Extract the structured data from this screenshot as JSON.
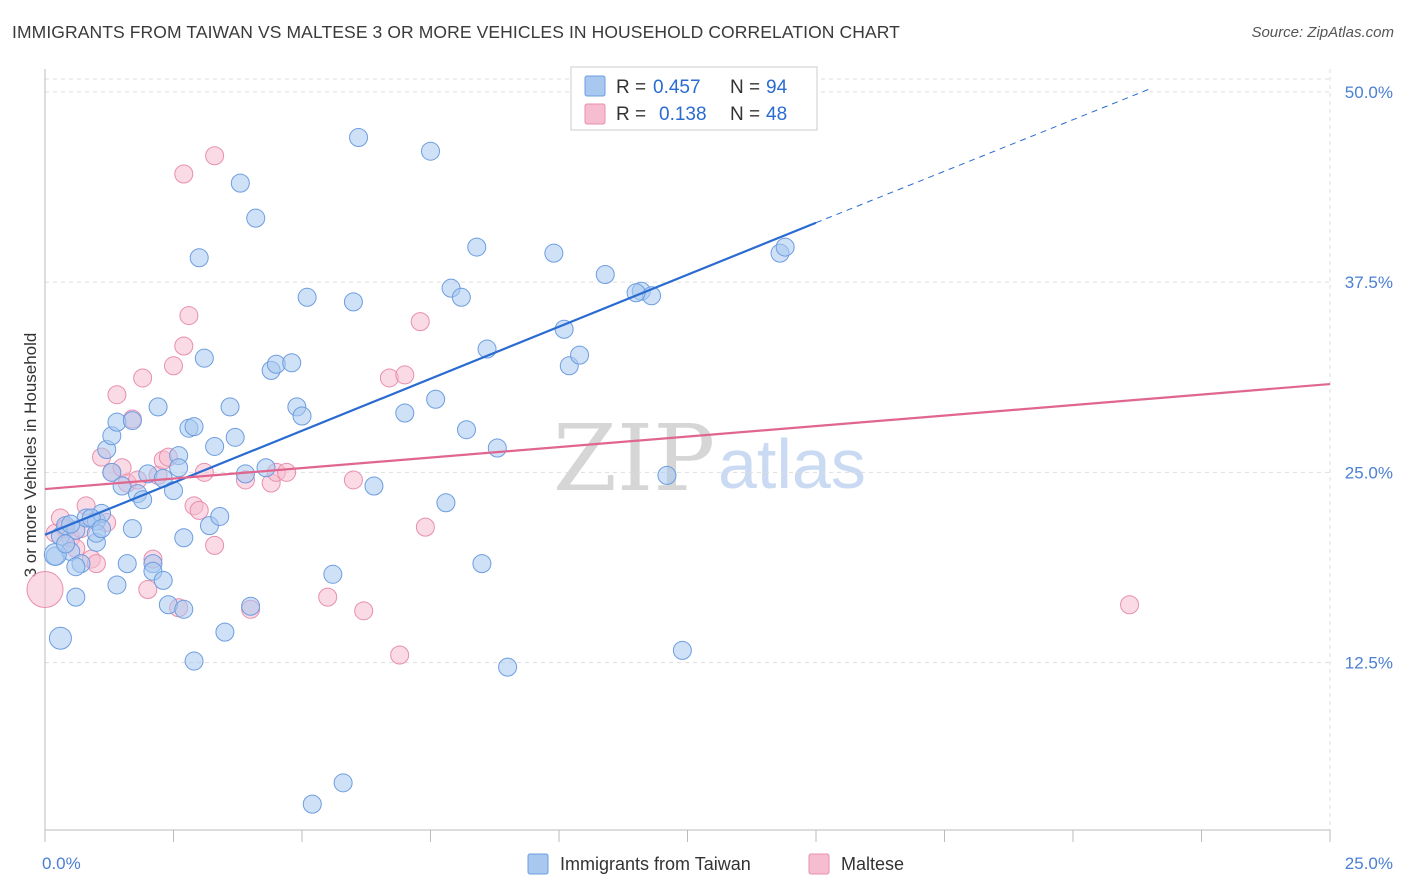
{
  "title": "IMMIGRANTS FROM TAIWAN VS MALTESE 3 OR MORE VEHICLES IN HOUSEHOLD CORRELATION CHART",
  "source": "Source: ZipAtlas.com",
  "watermark": {
    "zip": "ZIP",
    "atlas": "atlas"
  },
  "colors": {
    "taiwan_fill": "#a8c8f0",
    "taiwan_stroke": "#6d9de0",
    "taiwan_line": "#2a6bd1",
    "maltese_fill": "#f6bcd0",
    "maltese_stroke": "#e88fae",
    "maltese_line": "#e06690",
    "tick_text": "#4a7fd4",
    "grid": "#dddddd"
  },
  "legend_top": {
    "rows": [
      {
        "r_label": "R =",
        "r_value": "0.457",
        "n_label": "N =",
        "n_value": "94"
      },
      {
        "r_label": "R =",
        "r_value": "0.138",
        "n_label": "N =",
        "n_value": "48"
      }
    ]
  },
  "legend_bottom": [
    "Immigrants from Taiwan",
    "Maltese"
  ],
  "chart_data": {
    "type": "scatter",
    "title": "IMMIGRANTS FROM TAIWAN VS MALTESE 3 OR MORE VEHICLES IN HOUSEHOLD CORRELATION CHART",
    "xlabel": "",
    "ylabel": "3 or more Vehicles in Household",
    "xlim": [
      0,
      25
    ],
    "ylim": [
      1.5,
      51.5
    ],
    "x_tick_labels": [
      "0.0%",
      "25.0%"
    ],
    "y_ticks": [
      12.5,
      25.0,
      37.5,
      50.0
    ],
    "y_tick_labels": [
      "12.5%",
      "25.0%",
      "37.5%",
      "50.0%"
    ],
    "grid": true,
    "legend_position": "top-center",
    "series": [
      {
        "name": "Immigrants from Taiwan",
        "R": 0.457,
        "N": 94,
        "trend": {
          "x0": 0.0,
          "y0": 20.9,
          "x1": 15.0,
          "y1": 41.4,
          "dash_to_x": 21.5,
          "dash_to_y": 50.2
        },
        "points": [
          [
            0.2,
            19.5
          ],
          [
            0.3,
            20.8
          ],
          [
            0.4,
            21.5
          ],
          [
            0.5,
            19.8
          ],
          [
            0.6,
            21.2
          ],
          [
            0.7,
            19.0
          ],
          [
            0.8,
            22.0
          ],
          [
            0.3,
            14.1
          ],
          [
            0.6,
            16.8
          ],
          [
            1.0,
            21.8
          ],
          [
            1.1,
            22.3
          ],
          [
            1.0,
            20.4
          ],
          [
            1.0,
            21.0
          ],
          [
            1.2,
            26.5
          ],
          [
            1.3,
            27.4
          ],
          [
            1.4,
            28.3
          ],
          [
            1.7,
            28.4
          ],
          [
            1.3,
            25.0
          ],
          [
            1.5,
            24.1
          ],
          [
            1.8,
            23.6
          ],
          [
            1.9,
            23.2
          ],
          [
            2.0,
            24.9
          ],
          [
            1.7,
            21.3
          ],
          [
            1.6,
            19.0
          ],
          [
            1.4,
            17.6
          ],
          [
            2.1,
            19.0
          ],
          [
            2.1,
            18.5
          ],
          [
            2.2,
            29.3
          ],
          [
            2.3,
            24.6
          ],
          [
            2.3,
            17.9
          ],
          [
            2.4,
            16.3
          ],
          [
            2.5,
            23.8
          ],
          [
            2.6,
            26.1
          ],
          [
            2.6,
            25.3
          ],
          [
            2.7,
            20.7
          ],
          [
            2.7,
            16.0
          ],
          [
            2.8,
            27.9
          ],
          [
            2.9,
            28.0
          ],
          [
            2.9,
            12.6
          ],
          [
            3.0,
            39.1
          ],
          [
            3.1,
            32.5
          ],
          [
            3.2,
            21.5
          ],
          [
            3.3,
            26.7
          ],
          [
            3.4,
            22.1
          ],
          [
            3.5,
            14.5
          ],
          [
            3.6,
            29.3
          ],
          [
            3.7,
            27.3
          ],
          [
            3.8,
            44.0
          ],
          [
            3.9,
            24.9
          ],
          [
            4.0,
            16.2
          ],
          [
            4.1,
            41.7
          ],
          [
            4.4,
            31.7
          ],
          [
            4.5,
            32.1
          ],
          [
            4.3,
            25.3
          ],
          [
            4.9,
            29.3
          ],
          [
            4.8,
            32.2
          ],
          [
            5.0,
            28.7
          ],
          [
            5.1,
            36.5
          ],
          [
            5.2,
            3.2
          ],
          [
            5.6,
            18.3
          ],
          [
            5.8,
            4.6
          ],
          [
            6.0,
            36.2
          ],
          [
            6.1,
            47.0
          ],
          [
            6.4,
            24.1
          ],
          [
            7.0,
            28.9
          ],
          [
            7.5,
            46.1
          ],
          [
            7.6,
            29.8
          ],
          [
            7.9,
            37.1
          ],
          [
            7.8,
            23.0
          ],
          [
            8.1,
            36.5
          ],
          [
            8.2,
            27.8
          ],
          [
            8.4,
            39.8
          ],
          [
            8.6,
            33.1
          ],
          [
            8.5,
            19.0
          ],
          [
            8.8,
            26.6
          ],
          [
            9.0,
            12.2
          ],
          [
            9.9,
            39.4
          ],
          [
            10.1,
            34.4
          ],
          [
            10.2,
            32.0
          ],
          [
            10.4,
            32.7
          ],
          [
            10.9,
            38.0
          ],
          [
            11.6,
            36.9
          ],
          [
            11.8,
            36.6
          ],
          [
            11.5,
            36.8
          ],
          [
            12.4,
            13.3
          ],
          [
            12.1,
            24.8
          ],
          [
            14.3,
            39.4
          ],
          [
            14.4,
            39.8
          ],
          [
            0.2,
            19.6
          ],
          [
            0.5,
            21.6
          ],
          [
            0.9,
            22.0
          ],
          [
            1.1,
            21.3
          ],
          [
            0.4,
            20.3
          ],
          [
            0.6,
            18.8
          ]
        ]
      },
      {
        "name": "Maltese",
        "R": 0.138,
        "N": 48,
        "trend": {
          "x0": 0.0,
          "y0": 23.9,
          "x1": 25.0,
          "y1": 30.8
        },
        "points": [
          [
            0.0,
            17.3
          ],
          [
            0.2,
            21.0
          ],
          [
            0.3,
            22.0
          ],
          [
            0.4,
            21.3
          ],
          [
            0.5,
            20.7
          ],
          [
            0.6,
            20.0
          ],
          [
            0.7,
            21.3
          ],
          [
            0.8,
            22.8
          ],
          [
            0.9,
            19.3
          ],
          [
            1.0,
            19.0
          ],
          [
            1.1,
            26.0
          ],
          [
            1.2,
            21.7
          ],
          [
            1.3,
            25.0
          ],
          [
            1.4,
            30.1
          ],
          [
            1.5,
            25.3
          ],
          [
            1.6,
            24.3
          ],
          [
            1.7,
            28.5
          ],
          [
            1.8,
            24.5
          ],
          [
            1.9,
            31.2
          ],
          [
            2.0,
            17.3
          ],
          [
            2.1,
            19.3
          ],
          [
            2.2,
            24.8
          ],
          [
            2.3,
            25.8
          ],
          [
            2.4,
            26.0
          ],
          [
            2.5,
            32.0
          ],
          [
            2.6,
            16.1
          ],
          [
            2.7,
            33.3
          ],
          [
            2.8,
            35.3
          ],
          [
            2.9,
            22.8
          ],
          [
            3.0,
            22.5
          ],
          [
            3.1,
            25.0
          ],
          [
            3.3,
            20.2
          ],
          [
            2.7,
            44.6
          ],
          [
            3.3,
            45.8
          ],
          [
            3.9,
            24.5
          ],
          [
            4.0,
            16.0
          ],
          [
            4.4,
            24.3
          ],
          [
            4.5,
            25.0
          ],
          [
            4.7,
            25.0
          ],
          [
            5.5,
            16.8
          ],
          [
            6.0,
            24.5
          ],
          [
            6.2,
            15.9
          ],
          [
            6.7,
            31.2
          ],
          [
            6.9,
            13.0
          ],
          [
            7.0,
            31.4
          ],
          [
            7.3,
            34.9
          ],
          [
            7.4,
            21.4
          ],
          [
            21.1,
            16.3
          ]
        ]
      }
    ]
  }
}
